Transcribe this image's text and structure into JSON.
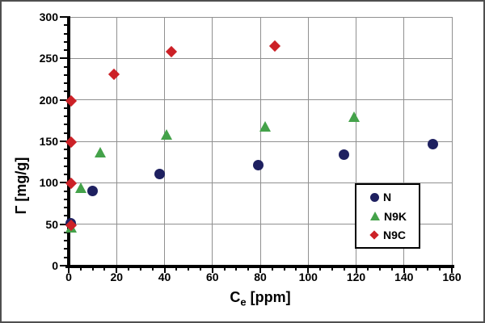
{
  "chart_data": {
    "type": "scatter",
    "title": "",
    "xlabel": "Ce [ppm]",
    "xlabel_parts": {
      "main": "C",
      "sub": "e",
      "unit": "[ppm]"
    },
    "ylabel": "Γ [mg/g]",
    "xlim": [
      0,
      160
    ],
    "ylim": [
      0,
      300
    ],
    "x_major_ticks": [
      0,
      20,
      40,
      60,
      80,
      100,
      120,
      140,
      160
    ],
    "x_minor_step": 5,
    "y_major_ticks": [
      0,
      50,
      100,
      150,
      200,
      250,
      300
    ],
    "y_minor_step": 10,
    "grid": true,
    "legend_position": "inside-bottom-right",
    "colors": {
      "gridline": "#909090",
      "axis": "#000000",
      "frame_border": "#4f4f4f",
      "background": "#ffffff"
    },
    "series": [
      {
        "name": "N",
        "marker": "circle",
        "color": "#1e2060",
        "points": [
          [
            1,
            51
          ],
          [
            10,
            90
          ],
          [
            38,
            111
          ],
          [
            79,
            121
          ],
          [
            115,
            134
          ],
          [
            152,
            147
          ]
        ]
      },
      {
        "name": "N9K",
        "marker": "triangle",
        "color": "#44a24a",
        "points": [
          [
            1,
            46
          ],
          [
            5,
            94
          ],
          [
            13,
            137
          ],
          [
            41,
            158
          ],
          [
            82,
            168
          ],
          [
            119,
            180
          ]
        ]
      },
      {
        "name": "N9C",
        "marker": "diamond",
        "color": "#cc2127",
        "points": [
          [
            1,
            49
          ],
          [
            1,
            99
          ],
          [
            1,
            149
          ],
          [
            1,
            199
          ],
          [
            19,
            231
          ],
          [
            43,
            258
          ],
          [
            86,
            265
          ]
        ]
      }
    ]
  }
}
